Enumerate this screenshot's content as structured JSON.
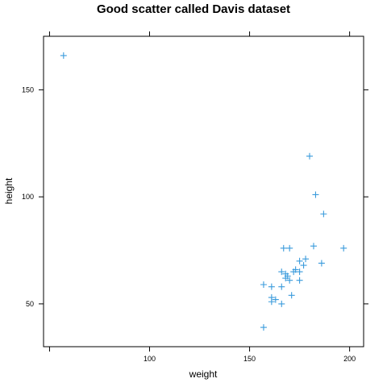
{
  "chart_data": {
    "type": "scatter",
    "title": "Good scatter called Davis dataset",
    "xlabel": "weight",
    "ylabel": "height",
    "xlim": [
      47,
      207
    ],
    "ylim": [
      30,
      175
    ],
    "xticks": [
      100,
      150,
      200
    ],
    "yticks": [
      50,
      100,
      150
    ],
    "grid": false,
    "marker": "plus",
    "color": "#3a9bdc",
    "points": [
      {
        "x": 57,
        "y": 166
      },
      {
        "x": 180,
        "y": 119
      },
      {
        "x": 183,
        "y": 101
      },
      {
        "x": 187,
        "y": 92
      },
      {
        "x": 182,
        "y": 77
      },
      {
        "x": 197,
        "y": 76
      },
      {
        "x": 167,
        "y": 76
      },
      {
        "x": 170,
        "y": 76
      },
      {
        "x": 178,
        "y": 71
      },
      {
        "x": 175,
        "y": 70
      },
      {
        "x": 186,
        "y": 69
      },
      {
        "x": 177,
        "y": 68
      },
      {
        "x": 173,
        "y": 66
      },
      {
        "x": 172,
        "y": 65
      },
      {
        "x": 175,
        "y": 65
      },
      {
        "x": 166,
        "y": 65
      },
      {
        "x": 168,
        "y": 64
      },
      {
        "x": 169,
        "y": 63
      },
      {
        "x": 168,
        "y": 62
      },
      {
        "x": 170,
        "y": 61
      },
      {
        "x": 175,
        "y": 61
      },
      {
        "x": 157,
        "y": 59
      },
      {
        "x": 161,
        "y": 58
      },
      {
        "x": 166,
        "y": 58
      },
      {
        "x": 171,
        "y": 54
      },
      {
        "x": 161,
        "y": 53
      },
      {
        "x": 163,
        "y": 52
      },
      {
        "x": 161,
        "y": 51
      },
      {
        "x": 166,
        "y": 50
      },
      {
        "x": 157,
        "y": 39
      }
    ]
  }
}
